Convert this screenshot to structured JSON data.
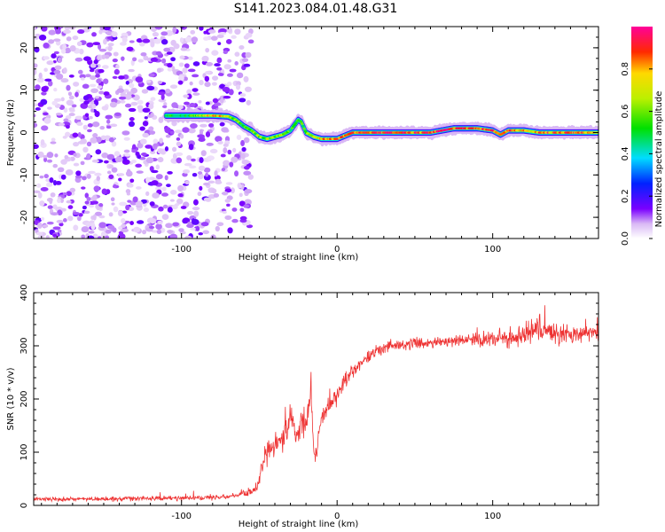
{
  "title": "S141.2023.084.01.48.G31",
  "chart_data": [
    {
      "type": "heatmap",
      "title": "",
      "xlabel": "Height of straight line (km)",
      "ylabel": "Frequency (Hz)",
      "xlim": [
        -195,
        168
      ],
      "ylim": [
        -25,
        25
      ],
      "xticks": [
        "-100",
        "0",
        "100"
      ],
      "yticks": [
        "20",
        "10",
        "0",
        "-10",
        "-20"
      ],
      "colorbar": {
        "label": "Normalized spectral amplitude",
        "range": [
          0,
          1
        ],
        "ticks": [
          "0.0",
          "0.2",
          "0.4",
          "0.6",
          "0.8"
        ]
      },
      "noise_region_x": [
        -195,
        -55
      ],
      "ridge": {
        "x": [
          -110,
          -100,
          -90,
          -80,
          -70,
          -65,
          -60,
          -55,
          -50,
          -45,
          -40,
          -35,
          -30,
          -25,
          -23,
          -20,
          -15,
          -10,
          -5,
          0,
          10,
          20,
          40,
          60,
          75,
          90,
          100,
          105,
          110,
          120,
          130,
          140,
          150,
          160,
          168
        ],
        "y": [
          4,
          4,
          4,
          4,
          3.8,
          3,
          1.5,
          0.5,
          -1,
          -1.5,
          -1,
          -0.5,
          0.5,
          3,
          2.5,
          0,
          -1,
          -1.5,
          -1.5,
          -1.5,
          0,
          0,
          0,
          0,
          1,
          1,
          0.5,
          -0.5,
          0.5,
          0.5,
          0,
          0,
          0,
          0,
          0
        ],
        "amplitude": [
          0.35,
          0.45,
          0.6,
          0.8,
          0.7,
          0.6,
          0.5,
          0.55,
          0.6,
          0.65,
          0.6,
          0.6,
          0.55,
          0.5,
          0.55,
          0.65,
          0.7,
          0.75,
          0.8,
          0.85,
          0.85,
          0.9,
          0.9,
          0.9,
          0.95,
          0.9,
          0.85,
          0.8,
          0.85,
          0.8,
          0.8,
          0.85,
          0.85,
          0.8,
          0.75
        ]
      }
    },
    {
      "type": "line",
      "title": "",
      "xlabel": "Height of straight line (km)",
      "ylabel": "SNR (10 * v/v)",
      "xlim": [
        -195,
        168
      ],
      "ylim": [
        0,
        400
      ],
      "xticks": [
        "-100",
        "0",
        "100"
      ],
      "yticks": [
        "0",
        "100",
        "200",
        "300",
        "400"
      ],
      "series": [
        {
          "color": "#ee3333",
          "x": [
            -195,
            -150,
            -100,
            -70,
            -60,
            -52,
            -47,
            -45,
            -40,
            -35,
            -30,
            -27,
            -25,
            -22,
            -20,
            -17,
            -15,
            -14,
            -13,
            -12,
            -10,
            -5,
            0,
            5,
            10,
            15,
            20,
            25,
            30,
            40,
            50,
            60,
            80,
            100,
            110,
            120,
            125,
            130,
            140,
            150,
            168
          ],
          "y": [
            12,
            12,
            14,
            16,
            22,
            30,
            80,
            100,
            110,
            125,
            160,
            150,
            130,
            160,
            140,
            230,
            100,
            90,
            100,
            140,
            160,
            190,
            210,
            230,
            255,
            268,
            280,
            290,
            296,
            300,
            305,
            306,
            310,
            313,
            315,
            318,
            330,
            325,
            325,
            320,
            325
          ],
          "noise": [
            4,
            4,
            5,
            5,
            6,
            10,
            20,
            22,
            22,
            25,
            30,
            30,
            25,
            30,
            30,
            35,
            20,
            20,
            18,
            20,
            18,
            18,
            18,
            18,
            16,
            15,
            14,
            12,
            12,
            10,
            10,
            10,
            12,
            14,
            18,
            22,
            28,
            25,
            20,
            18,
            16
          ]
        }
      ]
    }
  ]
}
